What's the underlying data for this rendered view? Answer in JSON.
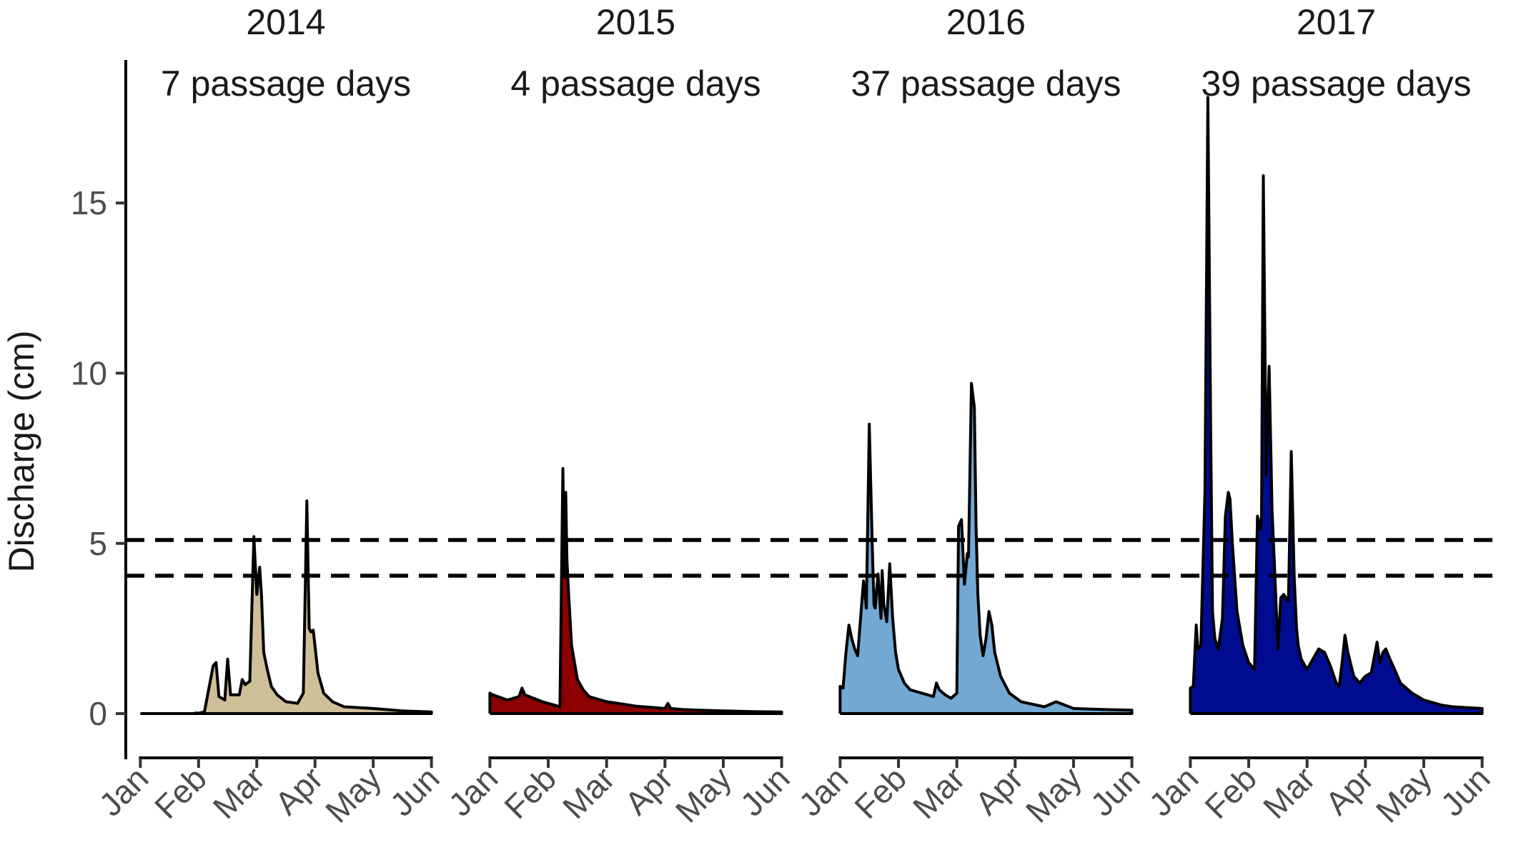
{
  "chart_data": {
    "type": "area",
    "ylabel": "Discharge (cm)",
    "xlabel": "",
    "ylim": [
      -1.3,
      19.2
    ],
    "yticks": [
      0,
      5,
      10,
      15
    ],
    "xlim": [
      -0.25,
      5.25
    ],
    "months": [
      "Jan",
      "Feb",
      "Mar",
      "Apr",
      "May",
      "Jun"
    ],
    "thresholds": [
      5.1,
      4.05
    ],
    "threshold_style": "dashed",
    "grid": false,
    "legend": "none",
    "line_color": "#000000",
    "panels": [
      {
        "title": "2014",
        "subtitle": "7 passage days",
        "fill": "#cfbf98",
        "x": [
          0.0,
          0.5,
          0.9,
          0.97,
          1.0,
          1.02,
          1.1,
          1.25,
          1.3,
          1.35,
          1.45,
          1.5,
          1.55,
          1.7,
          1.75,
          1.8,
          1.88,
          1.95,
          2.0,
          2.05,
          2.08,
          2.12,
          2.18,
          2.25,
          2.35,
          2.5,
          2.7,
          2.8,
          2.86,
          2.9,
          2.93,
          2.97,
          3.05,
          3.15,
          3.3,
          3.5,
          4.0,
          4.5,
          5.0
        ],
        "y": [
          0,
          0,
          0,
          0.02,
          0,
          0.02,
          0.05,
          1.4,
          1.5,
          0.5,
          0.4,
          1.6,
          0.55,
          0.55,
          1.0,
          0.85,
          0.95,
          5.2,
          3.5,
          4.3,
          3.5,
          1.8,
          1.3,
          0.8,
          0.55,
          0.35,
          0.3,
          0.6,
          6.25,
          2.5,
          2.4,
          2.45,
          1.2,
          0.6,
          0.35,
          0.2,
          0.15,
          0.08,
          0.05
        ]
      },
      {
        "title": "2015",
        "subtitle": "4 passage days",
        "fill": "#8b0000",
        "x": [
          0.0,
          0.05,
          0.3,
          0.5,
          0.55,
          0.6,
          0.9,
          1.1,
          1.2,
          1.25,
          1.28,
          1.3,
          1.32,
          1.35,
          1.4,
          1.5,
          1.6,
          1.7,
          1.9,
          2.0,
          2.2,
          2.5,
          2.8,
          3.0,
          3.05,
          3.1,
          3.3,
          3.6,
          4.0,
          4.5,
          5.0
        ],
        "y": [
          0.6,
          0.55,
          0.4,
          0.5,
          0.75,
          0.55,
          0.35,
          0.25,
          0.2,
          7.2,
          4.0,
          6.5,
          4.5,
          3.5,
          2.0,
          1.0,
          0.7,
          0.5,
          0.4,
          0.35,
          0.3,
          0.22,
          0.18,
          0.15,
          0.3,
          0.15,
          0.12,
          0.1,
          0.08,
          0.06,
          0.05
        ]
      },
      {
        "title": "2016",
        "subtitle": "37 passage days",
        "fill": "#72a8d2",
        "x": [
          0.0,
          0.05,
          0.1,
          0.15,
          0.2,
          0.25,
          0.3,
          0.4,
          0.45,
          0.5,
          0.55,
          0.58,
          0.6,
          0.65,
          0.7,
          0.72,
          0.75,
          0.8,
          0.85,
          0.9,
          0.95,
          1.0,
          1.1,
          1.2,
          1.4,
          1.6,
          1.65,
          1.7,
          1.8,
          1.9,
          2.0,
          2.03,
          2.08,
          2.13,
          2.18,
          2.2,
          2.25,
          2.3,
          2.33,
          2.36,
          2.4,
          2.45,
          2.5,
          2.55,
          2.6,
          2.65,
          2.75,
          2.9,
          3.1,
          3.5,
          3.7,
          4.0,
          4.5,
          5.0
        ],
        "y": [
          0.8,
          0.75,
          1.8,
          2.6,
          2.2,
          1.9,
          1.7,
          3.9,
          3.1,
          8.5,
          5.0,
          3.2,
          3.1,
          4.1,
          2.8,
          4.2,
          3.2,
          2.7,
          4.4,
          2.8,
          1.8,
          1.3,
          0.9,
          0.7,
          0.6,
          0.5,
          0.9,
          0.7,
          0.55,
          0.45,
          0.6,
          5.5,
          5.7,
          3.8,
          4.7,
          4.6,
          9.7,
          9.0,
          5.5,
          3.5,
          2.3,
          1.7,
          2.2,
          3.0,
          2.6,
          1.8,
          1.1,
          0.6,
          0.35,
          0.2,
          0.35,
          0.15,
          0.12,
          0.1
        ]
      },
      {
        "title": "2017",
        "subtitle": "39 passage days",
        "fill": "#000c8f",
        "x": [
          0.0,
          0.05,
          0.1,
          0.13,
          0.18,
          0.25,
          0.3,
          0.35,
          0.38,
          0.42,
          0.48,
          0.55,
          0.6,
          0.65,
          0.68,
          0.72,
          0.8,
          0.9,
          1.0,
          1.1,
          1.15,
          1.2,
          1.22,
          1.25,
          1.3,
          1.35,
          1.4,
          1.45,
          1.5,
          1.55,
          1.6,
          1.68,
          1.73,
          1.78,
          1.82,
          1.85,
          1.9,
          2.0,
          2.1,
          2.2,
          2.3,
          2.4,
          2.5,
          2.55,
          2.6,
          2.65,
          2.7,
          2.8,
          2.9,
          3.0,
          3.1,
          3.2,
          3.25,
          3.3,
          3.35,
          3.42,
          3.5,
          3.6,
          3.8,
          4.0,
          4.3,
          4.5,
          5.0
        ],
        "y": [
          0.75,
          0.8,
          2.6,
          1.9,
          2.0,
          6.5,
          18.1,
          8.0,
          3.0,
          2.2,
          1.9,
          2.8,
          5.8,
          6.5,
          6.3,
          5.0,
          3.0,
          2.0,
          1.5,
          1.3,
          5.8,
          5.4,
          5.8,
          15.8,
          7.0,
          10.2,
          6.0,
          4.0,
          1.9,
          3.4,
          3.5,
          3.3,
          7.7,
          4.0,
          2.5,
          2.0,
          1.6,
          1.3,
          1.6,
          1.9,
          1.8,
          1.4,
          0.9,
          0.8,
          1.5,
          2.3,
          1.8,
          1.1,
          0.9,
          1.1,
          1.2,
          2.1,
          1.5,
          1.8,
          1.9,
          1.6,
          1.3,
          0.9,
          0.6,
          0.4,
          0.25,
          0.2,
          0.15
        ]
      }
    ]
  }
}
